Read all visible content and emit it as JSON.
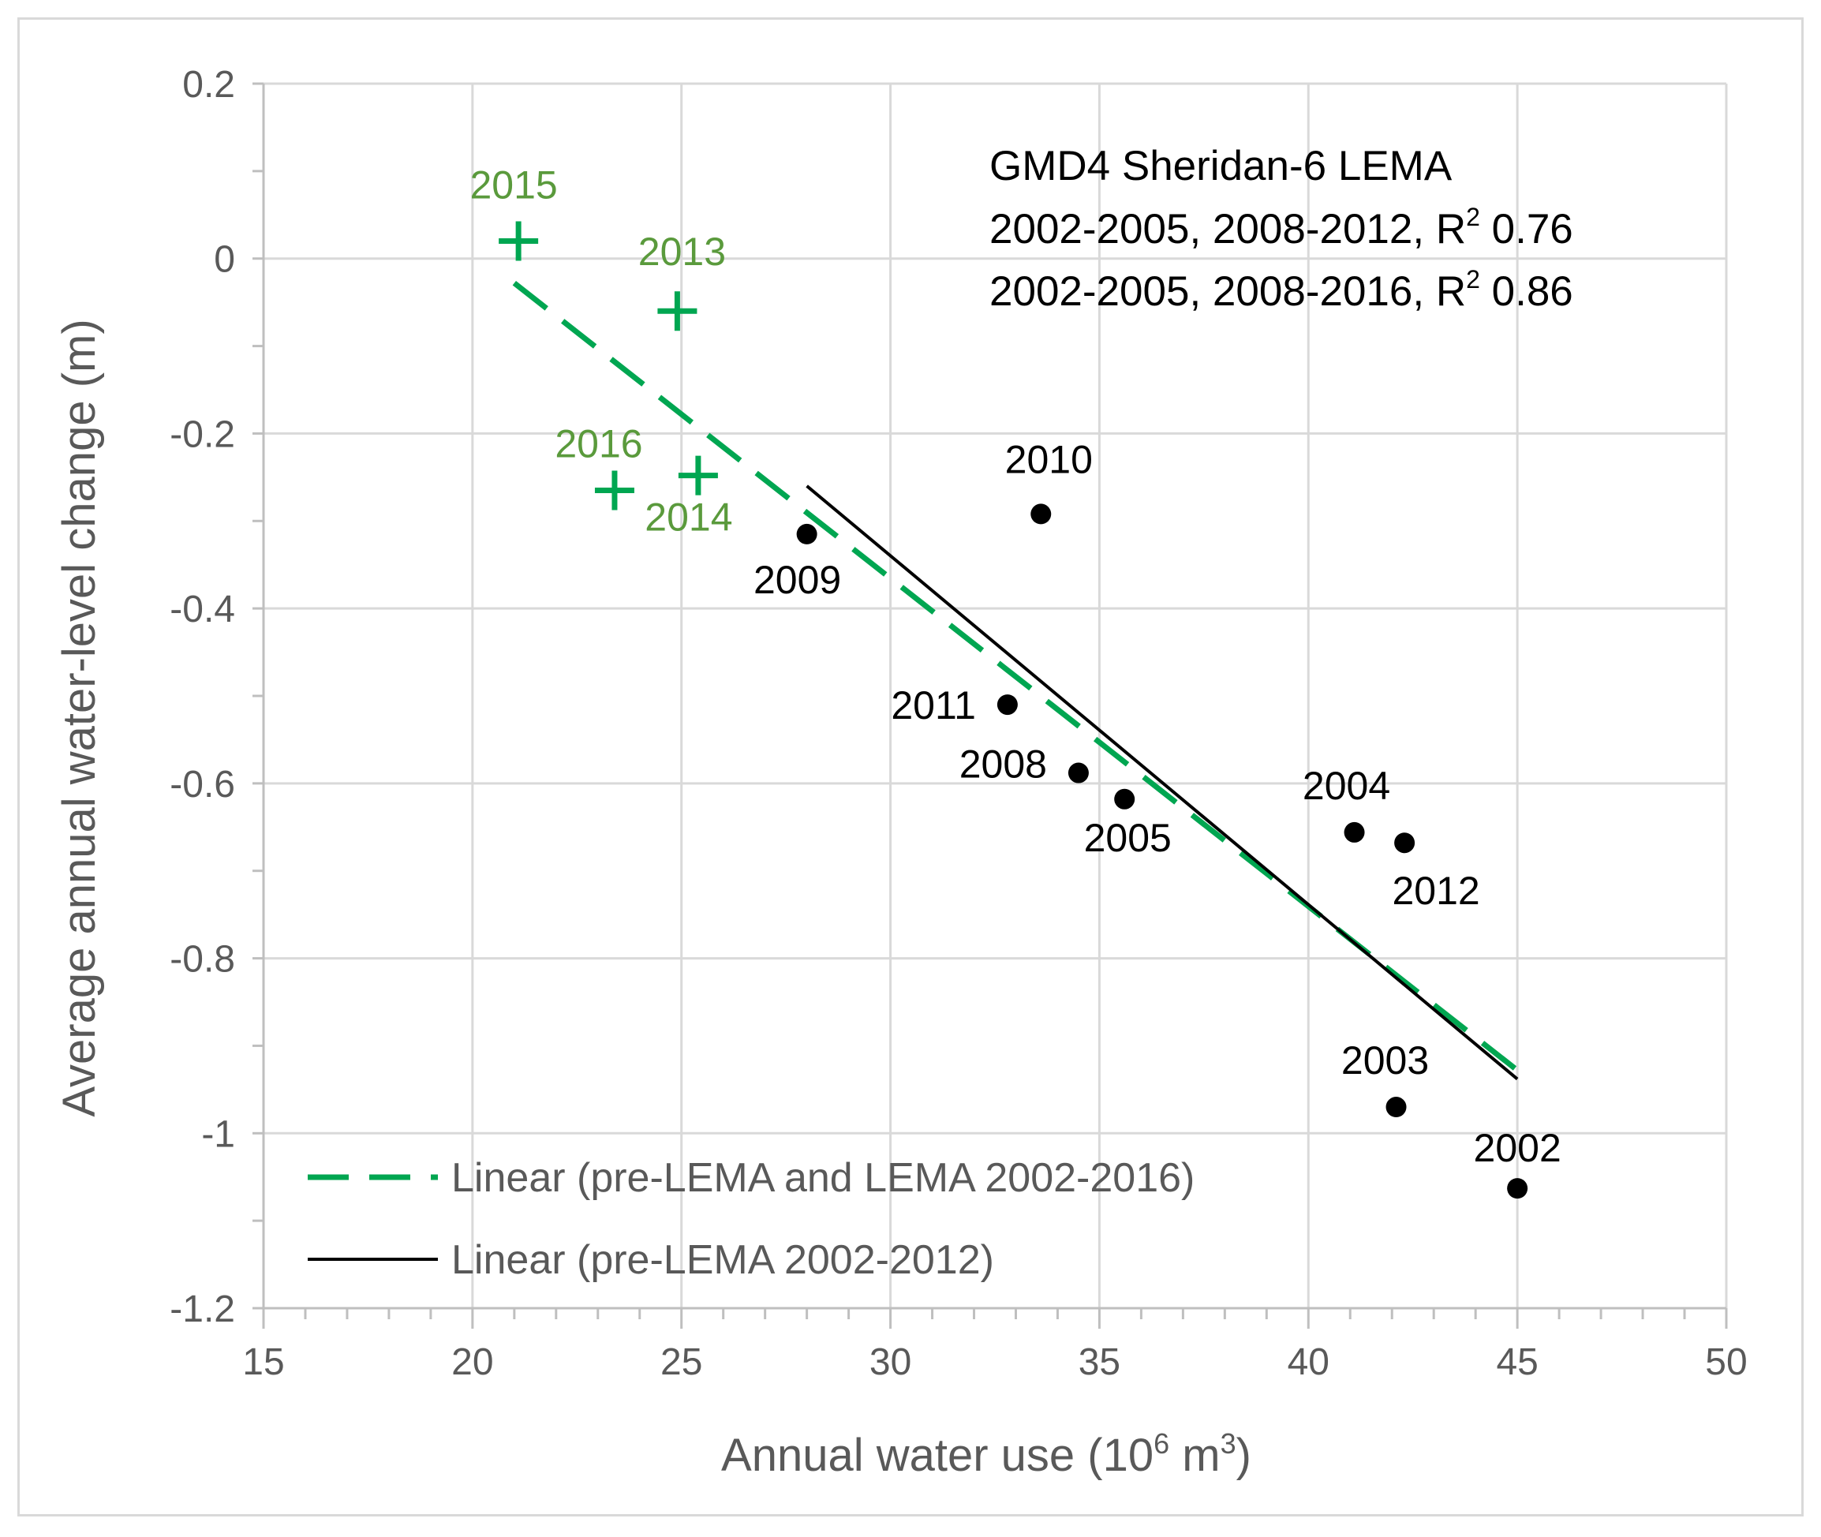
{
  "chart_data": {
    "type": "scatter",
    "title": "",
    "xlabel": "Annual water use (10",
    "xlabel_sup": "6",
    "xlabel_mid": " m",
    "xlabel_sup2": "3",
    "xlabel_end": ")",
    "ylabel": "Average annual water-level change (m)",
    "xlim": [
      15,
      50
    ],
    "ylim": [
      -1.2,
      0.2
    ],
    "x_major_ticks": [
      15,
      20,
      25,
      30,
      35,
      40,
      45,
      50
    ],
    "x_tick_labels": [
      "15",
      "20",
      "25",
      "30",
      "35",
      "40",
      "45",
      "50"
    ],
    "y_major_ticks": [
      0.2,
      0,
      -0.2,
      -0.4,
      -0.6,
      -0.8,
      -1,
      -1.2
    ],
    "y_tick_labels": [
      "0.2",
      "0",
      "-0.2",
      "-0.4",
      "-0.6",
      "-0.8",
      "-1",
      "-1.2"
    ],
    "y_minor_step": 0.1,
    "x_minor_step": 1,
    "grid": true,
    "colors": {
      "lema": "#00a651",
      "lema_label": "#5a9a3c",
      "pre_lema": "#000000",
      "grid": "#d9d9d9",
      "axis": "#bfbfbf"
    },
    "series": [
      {
        "name": "pre-LEMA",
        "marker": "circle",
        "points": [
          {
            "label": "2009",
            "x": 28.0,
            "y": -0.315
          },
          {
            "label": "2010",
            "x": 33.6,
            "y": -0.292
          },
          {
            "label": "2011",
            "x": 32.8,
            "y": -0.51
          },
          {
            "label": "2008",
            "x": 34.5,
            "y": -0.588
          },
          {
            "label": "2005",
            "x": 35.6,
            "y": -0.618
          },
          {
            "label": "2004",
            "x": 41.1,
            "y": -0.656
          },
          {
            "label": "2012",
            "x": 42.3,
            "y": -0.668
          },
          {
            "label": "2003",
            "x": 42.1,
            "y": -0.97
          },
          {
            "label": "2002",
            "x": 45.0,
            "y": -1.063
          }
        ]
      },
      {
        "name": "LEMA",
        "marker": "plus",
        "points": [
          {
            "label": "2015",
            "x": 21.1,
            "y": 0.02
          },
          {
            "label": "2013",
            "x": 24.9,
            "y": -0.06
          },
          {
            "label": "2016",
            "x": 23.4,
            "y": -0.265
          },
          {
            "label": "2014",
            "x": 25.4,
            "y": -0.248
          }
        ]
      }
    ],
    "trendlines": [
      {
        "name": "Linear (pre-LEMA and LEMA 2002-2016)",
        "style": "dashed",
        "x": [
          21.0,
          45.0
        ],
        "y": [
          -0.028,
          -0.928
        ]
      },
      {
        "name": "Linear (pre-LEMA 2002-2012)",
        "style": "solid",
        "x": [
          28.0,
          45.0
        ],
        "y": [
          -0.26,
          -0.938
        ]
      }
    ],
    "annotation": {
      "line1": "GMD4 Sheridan-6 LEMA",
      "line2_a": "2002-2005, 2008-2012, R",
      "line2_sup": "2",
      "line2_b": " 0.76",
      "line3_a": "2002-2005, 2008-2016, R",
      "line3_sup": "2",
      "line3_b": " 0.86"
    },
    "legend": {
      "position": "bottom-left",
      "entries": [
        "Linear (pre-LEMA and LEMA 2002-2016)",
        "Linear (pre-LEMA 2002-2012)"
      ]
    }
  }
}
